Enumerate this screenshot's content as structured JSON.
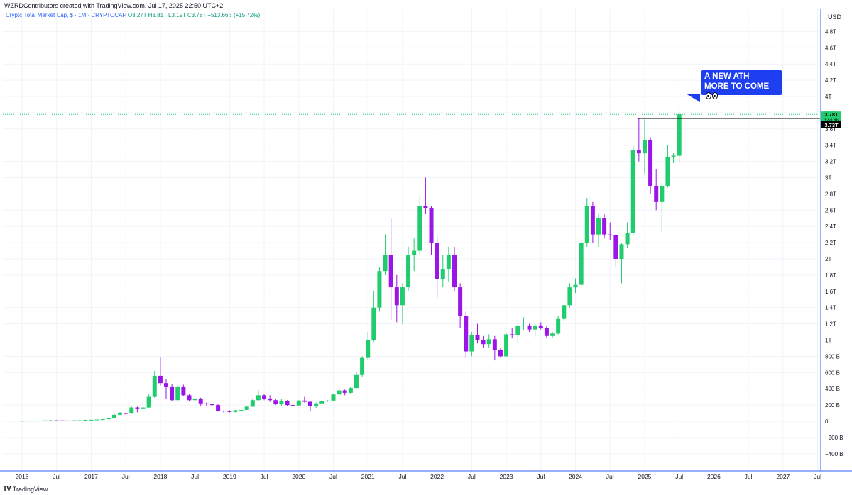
{
  "header": {
    "attribution": "WZRDContributors created with TradingView.com, Jul 17, 2025 22:50 UTC+2",
    "symbol": "Crypto Total Market Cap, $ · 1M · CRYPTOCAP",
    "ohlc": "O3.27T  H3.81T  L3.19T  C3.78T  +513.66B (+15.72%)",
    "currency": "USD"
  },
  "annotation": {
    "line1": "A NEW ATH",
    "line2": "MORE TO COME",
    "emoji": "eyes"
  },
  "footer": {
    "brand": "TradingView",
    "logo": "tv"
  },
  "price_tags": {
    "last": "3.78T",
    "countdown": "14d 4h",
    "level": "3.73T"
  },
  "colors": {
    "up": "#21cc6e",
    "down": "#9c15e8",
    "axis": "#2962ff",
    "callout": "#1e3ff0",
    "level": "#000000"
  },
  "chart_data": {
    "type": "candlestick",
    "title": "Crypto Total Market Cap, $ · 1M · CRYPTOCAP",
    "y_unit": "T",
    "ylim": [
      -0.45,
      4.95
    ],
    "y_ticks": [
      "4.8T",
      "4.6T",
      "4.4T",
      "4.2T",
      "4T",
      "3.8T",
      "3.6T",
      "3.4T",
      "3.2T",
      "3T",
      "2.8T",
      "2.6T",
      "2.4T",
      "2.2T",
      "2T",
      "1.8T",
      "1.6T",
      "1.4T",
      "1.2T",
      "1T",
      "800 B",
      "600 B",
      "400 B",
      "200 B",
      "0",
      "−200 B",
      "−400 B"
    ],
    "y_tick_values": [
      4.8,
      4.6,
      4.4,
      4.2,
      4.0,
      3.8,
      3.6,
      3.4,
      3.2,
      3.0,
      2.8,
      2.6,
      2.4,
      2.2,
      2.0,
      1.8,
      1.6,
      1.4,
      1.2,
      1.0,
      0.8,
      0.6,
      0.4,
      0.2,
      0,
      -0.2,
      -0.4
    ],
    "x_ticks": [
      {
        "label": "2016",
        "date": "2016-01"
      },
      {
        "label": "Jul",
        "date": "2016-07"
      },
      {
        "label": "2017",
        "date": "2017-01"
      },
      {
        "label": "Jul",
        "date": "2017-07"
      },
      {
        "label": "2018",
        "date": "2018-01"
      },
      {
        "label": "Jul",
        "date": "2018-07"
      },
      {
        "label": "2019",
        "date": "2019-01"
      },
      {
        "label": "Jul",
        "date": "2019-07"
      },
      {
        "label": "2020",
        "date": "2020-01"
      },
      {
        "label": "Jul",
        "date": "2020-07"
      },
      {
        "label": "2021",
        "date": "2021-01"
      },
      {
        "label": "Jul",
        "date": "2021-07"
      },
      {
        "label": "2022",
        "date": "2022-01"
      },
      {
        "label": "Jul",
        "date": "2022-07"
      },
      {
        "label": "2023",
        "date": "2023-01"
      },
      {
        "label": "Jul",
        "date": "2023-07"
      },
      {
        "label": "2024",
        "date": "2024-01"
      },
      {
        "label": "Jul",
        "date": "2024-07"
      },
      {
        "label": "2025",
        "date": "2025-01"
      },
      {
        "label": "Jul",
        "date": "2025-07"
      },
      {
        "label": "2026",
        "date": "2026-01"
      },
      {
        "label": "Jul",
        "date": "2026-07"
      },
      {
        "label": "2027",
        "date": "2027-01"
      },
      {
        "label": "Jul",
        "date": "2027-07"
      }
    ],
    "resistance_level": 3.73,
    "candles": [
      {
        "d": "2016-01",
        "o": 0.007,
        "h": 0.009,
        "l": 0.006,
        "c": 0.007
      },
      {
        "d": "2016-02",
        "o": 0.007,
        "h": 0.009,
        "l": 0.006,
        "c": 0.008
      },
      {
        "d": "2016-03",
        "o": 0.008,
        "h": 0.009,
        "l": 0.007,
        "c": 0.008
      },
      {
        "d": "2016-04",
        "o": 0.008,
        "h": 0.009,
        "l": 0.007,
        "c": 0.009
      },
      {
        "d": "2016-05",
        "o": 0.009,
        "h": 0.011,
        "l": 0.008,
        "c": 0.011
      },
      {
        "d": "2016-06",
        "o": 0.011,
        "h": 0.015,
        "l": 0.01,
        "c": 0.012
      },
      {
        "d": "2016-07",
        "o": 0.012,
        "h": 0.013,
        "l": 0.01,
        "c": 0.011
      },
      {
        "d": "2016-08",
        "o": 0.011,
        "h": 0.012,
        "l": 0.009,
        "c": 0.01
      },
      {
        "d": "2016-09",
        "o": 0.01,
        "h": 0.011,
        "l": 0.01,
        "c": 0.01
      },
      {
        "d": "2016-10",
        "o": 0.01,
        "h": 0.012,
        "l": 0.01,
        "c": 0.012
      },
      {
        "d": "2016-11",
        "o": 0.012,
        "h": 0.013,
        "l": 0.011,
        "c": 0.012
      },
      {
        "d": "2016-12",
        "o": 0.012,
        "h": 0.018,
        "l": 0.012,
        "c": 0.018
      },
      {
        "d": "2017-01",
        "o": 0.018,
        "h": 0.02,
        "l": 0.014,
        "c": 0.019
      },
      {
        "d": "2017-02",
        "o": 0.019,
        "h": 0.022,
        "l": 0.017,
        "c": 0.022
      },
      {
        "d": "2017-03",
        "o": 0.022,
        "h": 0.028,
        "l": 0.021,
        "c": 0.025
      },
      {
        "d": "2017-04",
        "o": 0.025,
        "h": 0.035,
        "l": 0.024,
        "c": 0.035
      },
      {
        "d": "2017-05",
        "o": 0.035,
        "h": 0.09,
        "l": 0.034,
        "c": 0.08
      },
      {
        "d": "2017-06",
        "o": 0.08,
        "h": 0.115,
        "l": 0.075,
        "c": 0.1
      },
      {
        "d": "2017-07",
        "o": 0.1,
        "h": 0.11,
        "l": 0.08,
        "c": 0.095
      },
      {
        "d": "2017-08",
        "o": 0.095,
        "h": 0.18,
        "l": 0.093,
        "c": 0.17
      },
      {
        "d": "2017-09",
        "o": 0.17,
        "h": 0.18,
        "l": 0.11,
        "c": 0.15
      },
      {
        "d": "2017-10",
        "o": 0.15,
        "h": 0.18,
        "l": 0.14,
        "c": 0.17
      },
      {
        "d": "2017-11",
        "o": 0.17,
        "h": 0.33,
        "l": 0.16,
        "c": 0.3
      },
      {
        "d": "2017-12",
        "o": 0.3,
        "h": 0.62,
        "l": 0.29,
        "c": 0.56
      },
      {
        "d": "2018-01",
        "o": 0.56,
        "h": 0.79,
        "l": 0.44,
        "c": 0.47
      },
      {
        "d": "2018-02",
        "o": 0.47,
        "h": 0.52,
        "l": 0.28,
        "c": 0.42
      },
      {
        "d": "2018-03",
        "o": 0.42,
        "h": 0.46,
        "l": 0.25,
        "c": 0.26
      },
      {
        "d": "2018-04",
        "o": 0.26,
        "h": 0.44,
        "l": 0.25,
        "c": 0.42
      },
      {
        "d": "2018-05",
        "o": 0.42,
        "h": 0.45,
        "l": 0.31,
        "c": 0.32
      },
      {
        "d": "2018-06",
        "o": 0.32,
        "h": 0.34,
        "l": 0.25,
        "c": 0.26
      },
      {
        "d": "2018-07",
        "o": 0.26,
        "h": 0.31,
        "l": 0.24,
        "c": 0.28
      },
      {
        "d": "2018-08",
        "o": 0.28,
        "h": 0.29,
        "l": 0.19,
        "c": 0.22
      },
      {
        "d": "2018-09",
        "o": 0.22,
        "h": 0.23,
        "l": 0.19,
        "c": 0.21
      },
      {
        "d": "2018-10",
        "o": 0.21,
        "h": 0.22,
        "l": 0.19,
        "c": 0.2
      },
      {
        "d": "2018-11",
        "o": 0.2,
        "h": 0.215,
        "l": 0.12,
        "c": 0.13
      },
      {
        "d": "2018-12",
        "o": 0.13,
        "h": 0.14,
        "l": 0.1,
        "c": 0.125
      },
      {
        "d": "2019-01",
        "o": 0.125,
        "h": 0.135,
        "l": 0.11,
        "c": 0.115
      },
      {
        "d": "2019-02",
        "o": 0.115,
        "h": 0.14,
        "l": 0.11,
        "c": 0.135
      },
      {
        "d": "2019-03",
        "o": 0.135,
        "h": 0.145,
        "l": 0.13,
        "c": 0.14
      },
      {
        "d": "2019-04",
        "o": 0.14,
        "h": 0.19,
        "l": 0.14,
        "c": 0.18
      },
      {
        "d": "2019-05",
        "o": 0.18,
        "h": 0.27,
        "l": 0.175,
        "c": 0.26
      },
      {
        "d": "2019-06",
        "o": 0.26,
        "h": 0.38,
        "l": 0.25,
        "c": 0.32
      },
      {
        "d": "2019-07",
        "o": 0.32,
        "h": 0.34,
        "l": 0.26,
        "c": 0.28
      },
      {
        "d": "2019-08",
        "o": 0.28,
        "h": 0.32,
        "l": 0.24,
        "c": 0.26
      },
      {
        "d": "2019-09",
        "o": 0.26,
        "h": 0.28,
        "l": 0.2,
        "c": 0.215
      },
      {
        "d": "2019-10",
        "o": 0.215,
        "h": 0.27,
        "l": 0.19,
        "c": 0.245
      },
      {
        "d": "2019-11",
        "o": 0.245,
        "h": 0.26,
        "l": 0.19,
        "c": 0.2
      },
      {
        "d": "2019-12",
        "o": 0.2,
        "h": 0.21,
        "l": 0.18,
        "c": 0.195
      },
      {
        "d": "2020-01",
        "o": 0.195,
        "h": 0.26,
        "l": 0.19,
        "c": 0.255
      },
      {
        "d": "2020-02",
        "o": 0.255,
        "h": 0.3,
        "l": 0.23,
        "c": 0.24
      },
      {
        "d": "2020-03",
        "o": 0.24,
        "h": 0.245,
        "l": 0.13,
        "c": 0.185
      },
      {
        "d": "2020-04",
        "o": 0.185,
        "h": 0.23,
        "l": 0.165,
        "c": 0.22
      },
      {
        "d": "2020-05",
        "o": 0.22,
        "h": 0.25,
        "l": 0.21,
        "c": 0.245
      },
      {
        "d": "2020-06",
        "o": 0.245,
        "h": 0.26,
        "l": 0.24,
        "c": 0.255
      },
      {
        "d": "2020-07",
        "o": 0.255,
        "h": 0.33,
        "l": 0.25,
        "c": 0.33
      },
      {
        "d": "2020-08",
        "o": 0.33,
        "h": 0.4,
        "l": 0.32,
        "c": 0.38
      },
      {
        "d": "2020-09",
        "o": 0.38,
        "h": 0.39,
        "l": 0.32,
        "c": 0.35
      },
      {
        "d": "2020-10",
        "o": 0.35,
        "h": 0.42,
        "l": 0.34,
        "c": 0.41
      },
      {
        "d": "2020-11",
        "o": 0.41,
        "h": 0.6,
        "l": 0.4,
        "c": 0.57
      },
      {
        "d": "2020-12",
        "o": 0.57,
        "h": 0.8,
        "l": 0.55,
        "c": 0.78
      },
      {
        "d": "2021-01",
        "o": 0.78,
        "h": 1.1,
        "l": 0.75,
        "c": 1.0
      },
      {
        "d": "2021-02",
        "o": 1.0,
        "h": 1.6,
        "l": 0.98,
        "c": 1.4
      },
      {
        "d": "2021-03",
        "o": 1.4,
        "h": 1.9,
        "l": 1.35,
        "c": 1.85
      },
      {
        "d": "2021-04",
        "o": 1.85,
        "h": 2.3,
        "l": 1.8,
        "c": 2.05
      },
      {
        "d": "2021-05",
        "o": 2.05,
        "h": 2.5,
        "l": 1.25,
        "c": 1.65
      },
      {
        "d": "2021-06",
        "o": 1.65,
        "h": 1.8,
        "l": 1.22,
        "c": 1.43
      },
      {
        "d": "2021-07",
        "o": 1.43,
        "h": 1.7,
        "l": 1.2,
        "c": 1.65
      },
      {
        "d": "2021-08",
        "o": 1.65,
        "h": 2.15,
        "l": 1.6,
        "c": 2.05
      },
      {
        "d": "2021-09",
        "o": 2.05,
        "h": 2.25,
        "l": 1.85,
        "c": 2.1
      },
      {
        "d": "2021-10",
        "o": 2.1,
        "h": 2.76,
        "l": 2.05,
        "c": 2.65
      },
      {
        "d": "2021-11",
        "o": 2.65,
        "h": 3.0,
        "l": 2.55,
        "c": 2.62
      },
      {
        "d": "2021-12",
        "o": 2.62,
        "h": 2.65,
        "l": 2.05,
        "c": 2.2
      },
      {
        "d": "2022-01",
        "o": 2.2,
        "h": 2.28,
        "l": 1.52,
        "c": 1.75
      },
      {
        "d": "2022-02",
        "o": 1.75,
        "h": 2.05,
        "l": 1.65,
        "c": 1.87
      },
      {
        "d": "2022-03",
        "o": 1.87,
        "h": 2.15,
        "l": 1.72,
        "c": 2.05
      },
      {
        "d": "2022-04",
        "o": 2.05,
        "h": 2.15,
        "l": 1.6,
        "c": 1.65
      },
      {
        "d": "2022-05",
        "o": 1.65,
        "h": 1.7,
        "l": 1.15,
        "c": 1.3
      },
      {
        "d": "2022-06",
        "o": 1.3,
        "h": 1.35,
        "l": 0.78,
        "c": 0.86
      },
      {
        "d": "2022-07",
        "o": 0.86,
        "h": 1.1,
        "l": 0.8,
        "c": 1.06
      },
      {
        "d": "2022-08",
        "o": 1.06,
        "h": 1.2,
        "l": 0.96,
        "c": 1.0
      },
      {
        "d": "2022-09",
        "o": 1.0,
        "h": 1.05,
        "l": 0.9,
        "c": 0.95
      },
      {
        "d": "2022-10",
        "o": 0.95,
        "h": 1.07,
        "l": 0.9,
        "c": 1.01
      },
      {
        "d": "2022-11",
        "o": 1.01,
        "h": 1.05,
        "l": 0.75,
        "c": 0.88
      },
      {
        "d": "2022-12",
        "o": 0.88,
        "h": 0.9,
        "l": 0.78,
        "c": 0.8
      },
      {
        "d": "2023-01",
        "o": 0.8,
        "h": 1.08,
        "l": 0.79,
        "c": 1.07
      },
      {
        "d": "2023-02",
        "o": 1.07,
        "h": 1.15,
        "l": 1.02,
        "c": 1.06
      },
      {
        "d": "2023-03",
        "o": 1.06,
        "h": 1.2,
        "l": 0.96,
        "c": 1.17
      },
      {
        "d": "2023-04",
        "o": 1.17,
        "h": 1.28,
        "l": 1.12,
        "c": 1.18
      },
      {
        "d": "2023-05",
        "o": 1.18,
        "h": 1.2,
        "l": 1.1,
        "c": 1.13
      },
      {
        "d": "2023-06",
        "o": 1.13,
        "h": 1.2,
        "l": 1.04,
        "c": 1.18
      },
      {
        "d": "2023-07",
        "o": 1.18,
        "h": 1.22,
        "l": 1.13,
        "c": 1.15
      },
      {
        "d": "2023-08",
        "o": 1.15,
        "h": 1.17,
        "l": 1.03,
        "c": 1.05
      },
      {
        "d": "2023-09",
        "o": 1.05,
        "h": 1.1,
        "l": 1.03,
        "c": 1.08
      },
      {
        "d": "2023-10",
        "o": 1.08,
        "h": 1.3,
        "l": 1.07,
        "c": 1.26
      },
      {
        "d": "2023-11",
        "o": 1.26,
        "h": 1.43,
        "l": 1.24,
        "c": 1.43
      },
      {
        "d": "2023-12",
        "o": 1.43,
        "h": 1.7,
        "l": 1.4,
        "c": 1.65
      },
      {
        "d": "2024-01",
        "o": 1.65,
        "h": 1.76,
        "l": 1.58,
        "c": 1.68
      },
      {
        "d": "2024-02",
        "o": 1.68,
        "h": 2.25,
        "l": 1.65,
        "c": 2.2
      },
      {
        "d": "2024-03",
        "o": 2.2,
        "h": 2.75,
        "l": 2.15,
        "c": 2.65
      },
      {
        "d": "2024-04",
        "o": 2.65,
        "h": 2.7,
        "l": 2.2,
        "c": 2.3
      },
      {
        "d": "2024-05",
        "o": 2.3,
        "h": 2.55,
        "l": 2.15,
        "c": 2.5
      },
      {
        "d": "2024-06",
        "o": 2.5,
        "h": 2.55,
        "l": 2.25,
        "c": 2.3
      },
      {
        "d": "2024-07",
        "o": 2.3,
        "h": 2.45,
        "l": 2.23,
        "c": 2.29
      },
      {
        "d": "2024-08",
        "o": 2.29,
        "h": 2.3,
        "l": 1.9,
        "c": 2.0
      },
      {
        "d": "2024-09",
        "o": 2.0,
        "h": 2.2,
        "l": 1.7,
        "c": 2.18
      },
      {
        "d": "2024-10",
        "o": 2.18,
        "h": 2.45,
        "l": 2.13,
        "c": 2.32
      },
      {
        "d": "2024-11",
        "o": 2.32,
        "h": 3.4,
        "l": 2.28,
        "c": 3.34
      },
      {
        "d": "2024-12",
        "o": 3.34,
        "h": 3.73,
        "l": 3.2,
        "c": 3.3
      },
      {
        "d": "2025-01",
        "o": 3.3,
        "h": 3.72,
        "l": 3.05,
        "c": 3.46
      },
      {
        "d": "2025-02",
        "o": 3.46,
        "h": 3.5,
        "l": 2.8,
        "c": 2.9
      },
      {
        "d": "2025-03",
        "o": 2.9,
        "h": 3.1,
        "l": 2.6,
        "c": 2.7
      },
      {
        "d": "2025-04",
        "o": 2.7,
        "h": 2.95,
        "l": 2.33,
        "c": 2.9
      },
      {
        "d": "2025-05",
        "o": 2.9,
        "h": 3.4,
        "l": 2.88,
        "c": 3.25
      },
      {
        "d": "2025-06",
        "o": 3.25,
        "h": 3.3,
        "l": 3.18,
        "c": 3.27
      },
      {
        "d": "2025-07",
        "o": 3.27,
        "h": 3.81,
        "l": 3.19,
        "c": 3.78
      }
    ]
  }
}
